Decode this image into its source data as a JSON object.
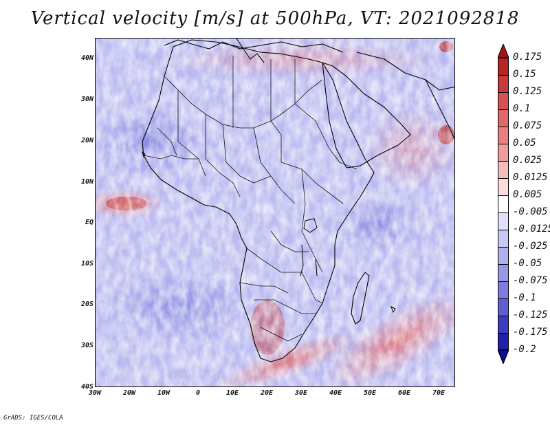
{
  "title": "Vertical velocity [m/s] at 500hPa, VT: 2021092818",
  "footer": "GrADS: IGES/COLA",
  "lat_labels": [
    "40N",
    "30N",
    "20N",
    "10N",
    "EQ",
    "10S",
    "20S",
    "30S",
    "40S"
  ],
  "lon_labels": [
    "30W",
    "20W",
    "10W",
    "0",
    "10E",
    "20E",
    "30E",
    "40E",
    "50E",
    "60E",
    "70E"
  ],
  "colorbar": {
    "labels": [
      "0.175",
      "0.15",
      "0.125",
      "0.1",
      "0.075",
      "0.05",
      "0.025",
      "0.0125",
      "0.005",
      "-0.005",
      "-0.0125",
      "-0.025",
      "-0.05",
      "-0.075",
      "-0.1",
      "-0.125",
      "-0.175",
      "-0.2"
    ],
    "colors": [
      "#a01414",
      "#b82424",
      "#c83a3a",
      "#d85050",
      "#e06868",
      "#e88080",
      "#f09c9c",
      "#f6bcbc",
      "#fadcdc",
      "#ffffff",
      "#e0e0fa",
      "#c8c8f4",
      "#b0b0ee",
      "#9898e6",
      "#7c7cde",
      "#5e5ed0",
      "#3c3cc0",
      "#2020a8",
      "#0c0c90"
    ]
  }
}
